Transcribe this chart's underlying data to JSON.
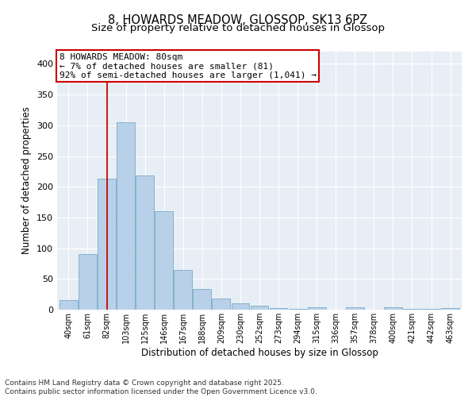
{
  "title": "8, HOWARDS MEADOW, GLOSSOP, SK13 6PZ",
  "subtitle": "Size of property relative to detached houses in Glossop",
  "xlabel": "Distribution of detached houses by size in Glossop",
  "ylabel": "Number of detached properties",
  "bins": [
    "40sqm",
    "61sqm",
    "82sqm",
    "103sqm",
    "125sqm",
    "146sqm",
    "167sqm",
    "188sqm",
    "209sqm",
    "230sqm",
    "252sqm",
    "273sqm",
    "294sqm",
    "315sqm",
    "336sqm",
    "357sqm",
    "378sqm",
    "400sqm",
    "421sqm",
    "442sqm",
    "463sqm"
  ],
  "values": [
    15,
    90,
    213,
    305,
    218,
    160,
    65,
    33,
    18,
    10,
    6,
    2,
    1,
    4,
    0,
    4,
    0,
    4,
    1,
    1,
    2
  ],
  "bar_color": "#b8d0e8",
  "bar_edge_color": "#7aaaca",
  "vline_x": 2.0,
  "annotation_line1": "8 HOWARDS MEADOW: 80sqm",
  "annotation_line2": "← 7% of detached houses are smaller (81)",
  "annotation_line3": "92% of semi-detached houses are larger (1,041) →",
  "annotation_box_facecolor": "#ffffff",
  "annotation_box_edgecolor": "#cc0000",
  "vline_color": "#cc0000",
  "ylim": [
    0,
    420
  ],
  "yticks": [
    0,
    50,
    100,
    150,
    200,
    250,
    300,
    350,
    400
  ],
  "plot_bg_color": "#e8eef5",
  "footer_line1": "Contains HM Land Registry data © Crown copyright and database right 2025.",
  "footer_line2": "Contains public sector information licensed under the Open Government Licence v3.0.",
  "title_fontsize": 10.5,
  "subtitle_fontsize": 9.5,
  "annot_fontsize": 8,
  "tick_fontsize": 7,
  "label_fontsize": 8.5,
  "footer_fontsize": 6.5
}
